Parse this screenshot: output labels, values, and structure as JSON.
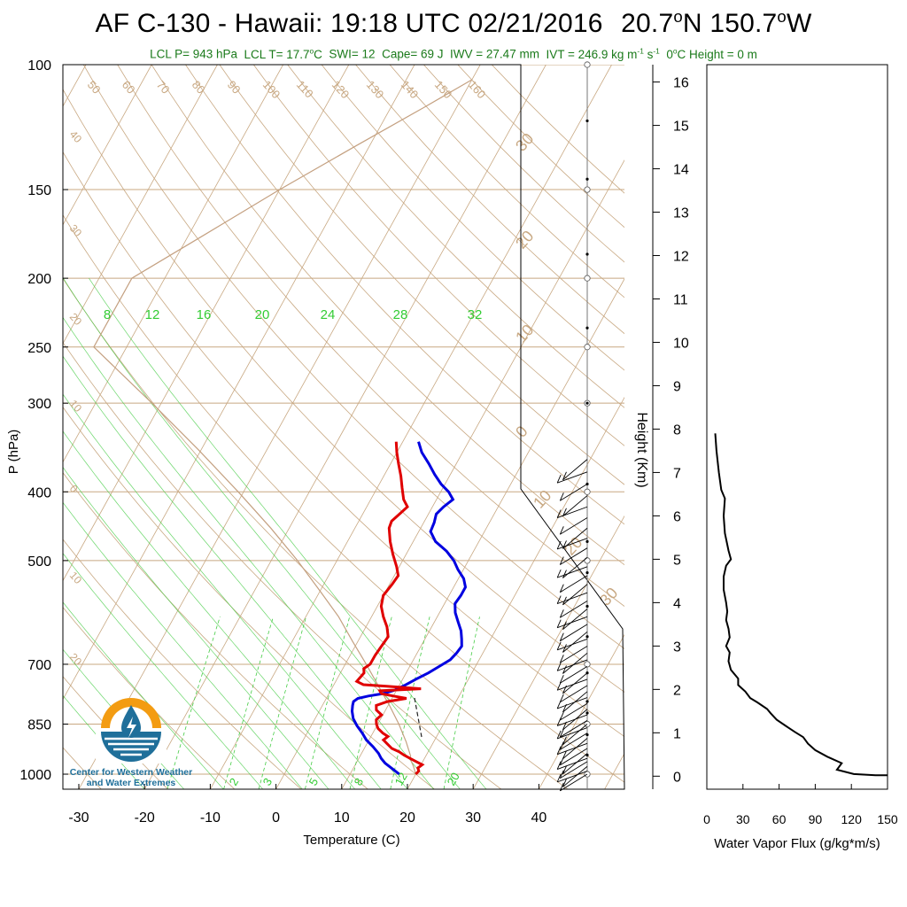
{
  "title": {
    "prefix": "AF C-130 - Hawaii: 19:18 UTC 02/21/2016",
    "lat": "20.7",
    "lat_unit": "o",
    "lat_hem": "N",
    "lon": "150.7",
    "lon_unit": "o",
    "lon_hem": "W"
  },
  "subtitle": {
    "lcl_p": "LCL P= 943 hPa",
    "lcl_t": "LCL T= 17.7",
    "lcl_t_deg": "o",
    "lcl_t_unit": "C",
    "swi": "SWI= 12",
    "cape": "Cape= 69 J",
    "iwv": "IWV = 27.47 mm",
    "ivt": "IVT = 246.9 kg m",
    "ivt_exp1": "-1",
    "ivt_mid": " s",
    "ivt_exp2": "-1",
    "zero_height": "0",
    "zero_height_deg": "o",
    "zero_height_rest": "C Height = 0 m"
  },
  "colors": {
    "temperature": "#e00000",
    "dewpoint": "#0000e0",
    "dry_adiabat": "#c8a882",
    "moist_adiabat": "#44cc44",
    "mixing_ratio": "#44cc44",
    "isotherm": "#c8a882",
    "parcel": "#c4a080",
    "subtitle_green": "#1a7a1a",
    "logo_blue": "#1f6f9a",
    "logo_orange": "#f39c12"
  },
  "chart_data": [
    {
      "type": "skew-t",
      "xlabel": "Temperature (C)",
      "ylabel": "P (hPa)",
      "xlim": [
        -35,
        52
      ],
      "ylim": [
        1050,
        100
      ],
      "x_ticks": [
        "-30",
        "-20",
        "-10",
        "0",
        "10",
        "20",
        "30",
        "40"
      ],
      "y_ticks": [
        "100",
        "150",
        "200",
        "250",
        "300",
        "400",
        "500",
        "700",
        "850",
        "1000"
      ],
      "dry_adiabat_labels": [
        "50",
        "60",
        "70",
        "80",
        "90",
        "100",
        "110",
        "120",
        "130",
        "140",
        "150",
        "160"
      ],
      "isotherm_labels_left": [
        "40",
        "30",
        "20",
        "10",
        "0",
        "10",
        "20"
      ],
      "isotherm_labels_right": [
        "30",
        "20",
        "10",
        "0",
        "10",
        "20",
        "30"
      ],
      "moist_adiabat_labels": [
        "8",
        "12",
        "16",
        "20",
        "24",
        "28",
        "32"
      ],
      "mixing_ratio_labels": [
        "2",
        "3",
        "5",
        "8",
        "12",
        "20"
      ],
      "series": [
        {
          "name": "Temperature",
          "values": [
            [
              20.0,
              1000
            ],
            [
              20.2,
              990
            ],
            [
              19.8,
              980
            ],
            [
              20.2,
              970
            ],
            [
              19.0,
              960
            ],
            [
              17.8,
              950
            ],
            [
              16.6,
              940
            ],
            [
              15.6,
              930
            ],
            [
              14.2,
              920
            ],
            [
              13.0,
              905
            ],
            [
              12.2,
              895
            ],
            [
              12.6,
              885
            ],
            [
              11.5,
              875
            ],
            [
              10.4,
              862
            ],
            [
              9.8,
              850
            ],
            [
              9.4,
              838
            ],
            [
              9.8,
              825
            ],
            [
              8.6,
              812
            ],
            [
              8.2,
              800
            ],
            [
              9.6,
              790
            ],
            [
              12.2,
              782
            ],
            [
              10.0,
              776
            ],
            [
              8.0,
              770
            ],
            [
              7.5,
              763
            ],
            [
              13.6,
              758
            ],
            [
              8.4,
              752
            ],
            [
              4.5,
              748
            ],
            [
              3.2,
              740
            ],
            [
              3.4,
              730
            ],
            [
              3.6,
              720
            ],
            [
              3.2,
              710
            ],
            [
              3.8,
              700
            ],
            [
              3.8,
              680
            ],
            [
              4.0,
              660
            ],
            [
              4.2,
              640
            ],
            [
              3.2,
              620
            ],
            [
              1.8,
              600
            ],
            [
              0.6,
              580
            ],
            [
              0.0,
              560
            ],
            [
              0.4,
              540
            ],
            [
              0.6,
              525
            ],
            [
              -0.4,
              510
            ],
            [
              -2.0,
              490
            ],
            [
              -3.5,
              470
            ],
            [
              -4.8,
              450
            ],
            [
              -5.0,
              440
            ],
            [
              -4.4,
              430
            ],
            [
              -3.8,
              420
            ],
            [
              -5.0,
              410
            ],
            [
              -6.2,
              395
            ],
            [
              -7.4,
              380
            ],
            [
              -8.8,
              365
            ],
            [
              -10.0,
              352
            ],
            [
              -11.0,
              340
            ]
          ]
        },
        {
          "name": "Dewpoint",
          "values": [
            [
              17.5,
              1000
            ],
            [
              16.2,
              985
            ],
            [
              14.4,
              965
            ],
            [
              13.4,
              950
            ],
            [
              12.6,
              935
            ],
            [
              11.2,
              915
            ],
            [
              9.6,
              895
            ],
            [
              8.4,
              875
            ],
            [
              7.0,
              855
            ],
            [
              5.8,
              835
            ],
            [
              5.0,
              815
            ],
            [
              4.6,
              800
            ],
            [
              4.4,
              790
            ],
            [
              4.8,
              782
            ],
            [
              6.2,
              776
            ],
            [
              8.2,
              770
            ],
            [
              9.6,
              762
            ],
            [
              10.8,
              750
            ],
            [
              12.0,
              735
            ],
            [
              13.4,
              720
            ],
            [
              14.5,
              705
            ],
            [
              15.6,
              690
            ],
            [
              16.0,
              675
            ],
            [
              16.2,
              660
            ],
            [
              15.6,
              645
            ],
            [
              14.8,
              628
            ],
            [
              13.6,
              610
            ],
            [
              12.4,
              592
            ],
            [
              11.6,
              575
            ],
            [
              11.8,
              560
            ],
            [
              11.8,
              545
            ],
            [
              10.8,
              530
            ],
            [
              9.2,
              515
            ],
            [
              7.8,
              500
            ],
            [
              5.9,
              485
            ],
            [
              3.4,
              470
            ],
            [
              1.8,
              455
            ],
            [
              1.6,
              442
            ],
            [
              1.2,
              430
            ],
            [
              1.7,
              420
            ],
            [
              2.5,
              410
            ],
            [
              1.2,
              400
            ],
            [
              -0.6,
              390
            ],
            [
              -2.4,
              378
            ],
            [
              -4.2,
              365
            ],
            [
              -6.2,
              352
            ],
            [
              -7.6,
              340
            ]
          ]
        },
        {
          "name": "Parcel",
          "values": [
            [
              20.0,
              1000
            ],
            [
              19.0,
              975
            ],
            [
              17.8,
              950
            ],
            [
              17.7,
              943
            ],
            [
              15.8,
              900
            ],
            [
              13.2,
              850
            ],
            [
              10.2,
              800
            ],
            [
              6.8,
              750
            ],
            [
              3.2,
              700
            ],
            [
              -0.8,
              650
            ],
            [
              -5.0,
              600
            ],
            [
              -10.2,
              550
            ],
            [
              -16.0,
              500
            ],
            [
              -22.8,
              450
            ],
            [
              -30.8,
              400
            ],
            [
              -40.2,
              350
            ],
            [
              -51.4,
              300
            ],
            [
              -65.0,
              250
            ],
            [
              -65.0,
              225
            ],
            [
              -65.0,
              200
            ],
            [
              -58.0,
              175
            ],
            [
              -50.0,
              150
            ],
            [
              -42.0,
              130
            ],
            [
              -35.0,
              115
            ],
            [
              -30.0,
              105
            ]
          ]
        }
      ],
      "wind_barb_levels_hpa": [
        1000,
        990,
        975,
        960,
        950,
        935,
        920,
        905,
        890,
        875,
        860,
        850,
        840,
        825,
        810,
        795,
        780,
        765,
        750,
        735,
        720,
        705,
        690,
        675,
        660,
        645,
        630,
        615,
        600,
        585,
        570,
        555,
        540,
        525,
        510,
        495,
        480,
        465,
        450,
        435,
        420,
        405,
        390,
        375,
        360
      ]
    },
    {
      "type": "line",
      "xlabel": "Water Vapor Flux (g/kg*m/s)",
      "ylabel": "Height (Km)",
      "xlim": [
        0,
        150
      ],
      "ylim": [
        -0.3,
        16.4
      ],
      "x_ticks": [
        "0",
        "30",
        "60",
        "90",
        "120",
        "150"
      ],
      "y_ticks": [
        "0",
        "1",
        "2",
        "3",
        "4",
        "5",
        "6",
        "7",
        "8",
        "9",
        "10",
        "11",
        "12",
        "13",
        "14",
        "15",
        "16"
      ],
      "series": [
        {
          "name": "Water Vapor Flux",
          "values": [
            [
              140,
              0.02
            ],
            [
              122,
              0.05
            ],
            [
              108,
              0.15
            ],
            [
              112,
              0.3
            ],
            [
              100,
              0.45
            ],
            [
              90,
              0.6
            ],
            [
              84,
              0.75
            ],
            [
              80,
              0.9
            ],
            [
              73,
              1.02
            ],
            [
              66,
              1.15
            ],
            [
              58,
              1.3
            ],
            [
              53,
              1.45
            ],
            [
              50,
              1.55
            ],
            [
              42,
              1.7
            ],
            [
              36,
              1.8
            ],
            [
              32,
              1.95
            ],
            [
              26,
              2.1
            ],
            [
              26,
              2.25
            ],
            [
              20,
              2.45
            ],
            [
              18,
              2.65
            ],
            [
              19,
              2.85
            ],
            [
              16,
              3.0
            ],
            [
              19,
              3.2
            ],
            [
              18,
              3.4
            ],
            [
              16,
              3.6
            ],
            [
              17,
              3.8
            ],
            [
              16,
              4.0
            ],
            [
              14,
              4.3
            ],
            [
              14,
              4.6
            ],
            [
              16,
              4.85
            ],
            [
              20,
              5.0
            ],
            [
              18,
              5.2
            ],
            [
              15,
              5.6
            ],
            [
              14,
              6.0
            ],
            [
              15,
              6.4
            ],
            [
              12,
              6.6
            ],
            [
              10,
              7.0
            ],
            [
              8,
              7.5
            ],
            [
              7,
              7.9
            ]
          ]
        }
      ]
    }
  ],
  "logo": {
    "line1": "Center for Western Weather",
    "line2": "and Water Extremes"
  }
}
